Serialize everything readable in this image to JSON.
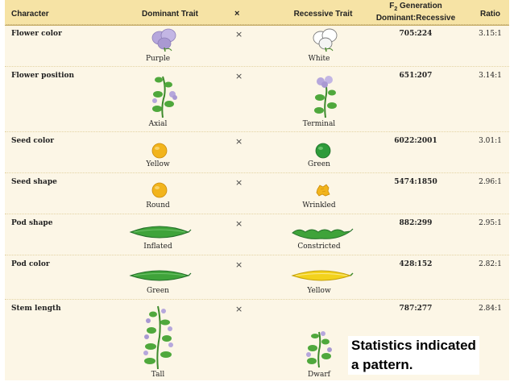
{
  "header": {
    "character": "Character",
    "dominant": "Dominant Trait",
    "cross": "×",
    "recessive": "Recessive Trait",
    "f2_prefix": "F",
    "f2_sub": "2",
    "f2_suffix": " Generation",
    "f2_line2": "Dominant:Recessive",
    "ratio": "Ratio"
  },
  "rows": [
    {
      "character": "Flower color",
      "cross": "×",
      "dominant": "Purple",
      "recessive": "White",
      "f2": "705:224",
      "ratio": "3.15:1"
    },
    {
      "character": "Flower position",
      "cross": "×",
      "dominant": "Axial",
      "recessive": "Terminal",
      "f2": "651:207",
      "ratio": "3.14:1"
    },
    {
      "character": "Seed color",
      "cross": "×",
      "dominant": "Yellow",
      "recessive": "Green",
      "f2": "6022:2001",
      "ratio": "3.01:1"
    },
    {
      "character": "Seed shape",
      "cross": "×",
      "dominant": "Round",
      "recessive": "Wrinkled",
      "f2": "5474:1850",
      "ratio": "2.96:1"
    },
    {
      "character": "Pod shape",
      "cross": "×",
      "dominant": "Inflated",
      "recessive": "Constricted",
      "f2": "882:299",
      "ratio": "2.95:1"
    },
    {
      "character": "Pod color",
      "cross": "×",
      "dominant": "Green",
      "recessive": "Yellow",
      "f2": "428:152",
      "ratio": "2.82:1"
    },
    {
      "character": "Stem length",
      "cross": "×",
      "dominant": "Tall",
      "recessive": "Dwarf",
      "f2": "787:277",
      "ratio": "2.84:1"
    }
  ],
  "overlay": {
    "line1": "Statistics indicated",
    "line2": "a pattern."
  },
  "colors": {
    "header_bg": "#f6e3a5",
    "table_bg": "#fcf6e6",
    "purple_flower": "#b6a7dc",
    "yellow_seed": "#f2b41c",
    "green_seed": "#2e9b3a",
    "green_pod": "#3fa33a",
    "yellow_pod": "#f3d21c"
  }
}
